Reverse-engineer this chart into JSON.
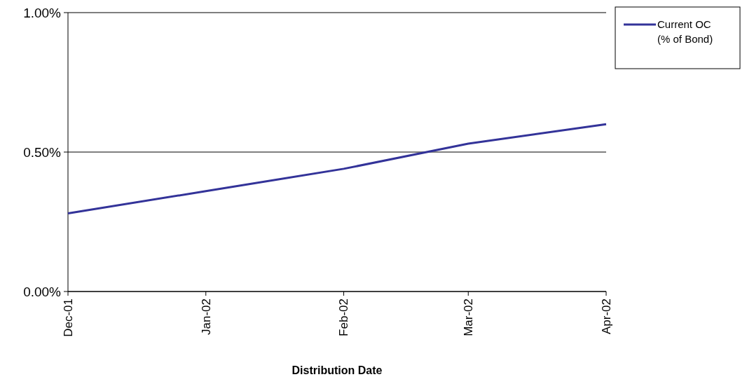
{
  "chart_data": {
    "type": "line",
    "xlabel": "Distribution Date",
    "x": [
      "2001-12-01",
      "2002-01-01",
      "2002-02-01",
      "2002-03-01",
      "2002-04-01"
    ],
    "series": [
      {
        "name": "Current OC\n(% of Bond)",
        "color": "#333399",
        "values": [
          0.28,
          0.36,
          0.44,
          0.53,
          0.6
        ]
      }
    ],
    "xlim": [
      "2001-12-01",
      "2002-04-01"
    ],
    "xticks": [
      {
        "value": "2001-12-01",
        "label": "Dec-01"
      },
      {
        "value": "2002-01-01",
        "label": "Jan-02"
      },
      {
        "value": "2002-02-01",
        "label": "Feb-02"
      },
      {
        "value": "2002-03-01",
        "label": "Mar-02"
      },
      {
        "value": "2002-04-01",
        "label": "Apr-02"
      }
    ],
    "ylim": [
      0,
      1
    ],
    "yticks": [
      {
        "value": 0,
        "label": "0.00%"
      },
      {
        "value": 0.5,
        "label": "0.50%"
      },
      {
        "value": 1,
        "label": "1.00%"
      }
    ],
    "grid": "y",
    "legend": "right",
    "marker": "none",
    "line_style": "solid"
  }
}
